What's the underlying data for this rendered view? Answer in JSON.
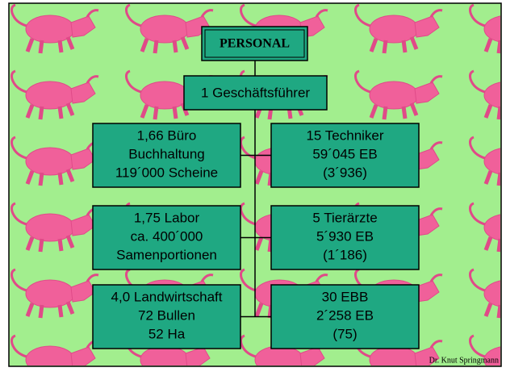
{
  "title": "PERSONAL",
  "manager": "1 Geschäftsführer",
  "left": [
    [
      "1,66 Büro",
      "Buchhaltung",
      "119´000 Scheine"
    ],
    [
      "1,75 Labor",
      "ca. 400´000",
      "Samenportionen"
    ],
    [
      "4,0 Landwirtschaft",
      "72 Bullen",
      "52 Ha"
    ]
  ],
  "right": [
    [
      "15 Techniker",
      "59´045 EB",
      "(3´936)"
    ],
    [
      "5 Tierärzte",
      "5´930 EB",
      "(1´186)"
    ],
    [
      "30 EBB",
      "2´258 EB",
      "(75)"
    ]
  ],
  "footer": "Dr. Knut Springmann"
}
